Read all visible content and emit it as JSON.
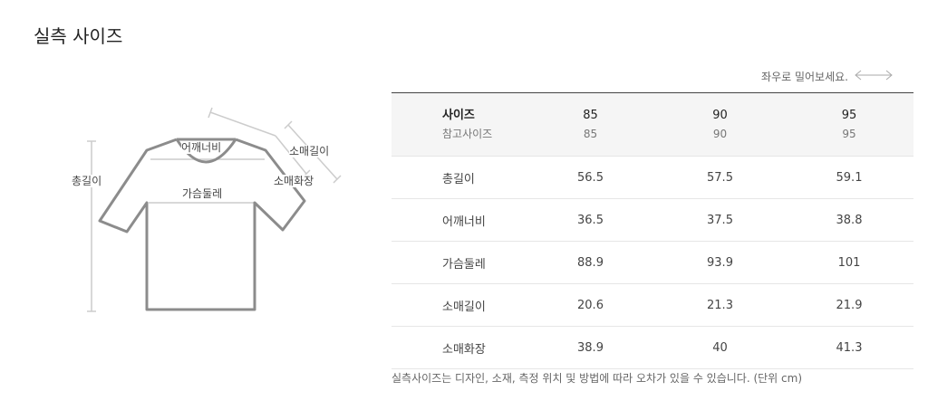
{
  "title": "실측 사이즈",
  "scroll_hint": "좌우로 밀어보세요.",
  "diagram": {
    "total_length": "총길이",
    "shoulder_width": "어깨너비",
    "chest": "가슴둘레",
    "sleeve_length": "소매길이",
    "sleeve_hwajang": "소매화장"
  },
  "table": {
    "header_label": "사이즈",
    "header_sub_label": "참고사이즈",
    "sizes": [
      "85",
      "90",
      "95"
    ],
    "ref_sizes": [
      "85",
      "90",
      "95"
    ],
    "rows": [
      {
        "label": "총길이",
        "values": [
          "56.5",
          "57.5",
          "59.1"
        ]
      },
      {
        "label": "어깨너비",
        "values": [
          "36.5",
          "37.5",
          "38.8"
        ]
      },
      {
        "label": "가슴둘레",
        "values": [
          "88.9",
          "93.9",
          "101"
        ]
      },
      {
        "label": "소매길이",
        "values": [
          "20.6",
          "21.3",
          "21.9"
        ]
      },
      {
        "label": "소매화장",
        "values": [
          "38.9",
          "40",
          "41.3"
        ]
      }
    ]
  },
  "note": "실측사이즈는 디자인, 소재, 측정 위치 및 방법에 따라 오차가 있을 수 있습니다. (단위 cm)"
}
